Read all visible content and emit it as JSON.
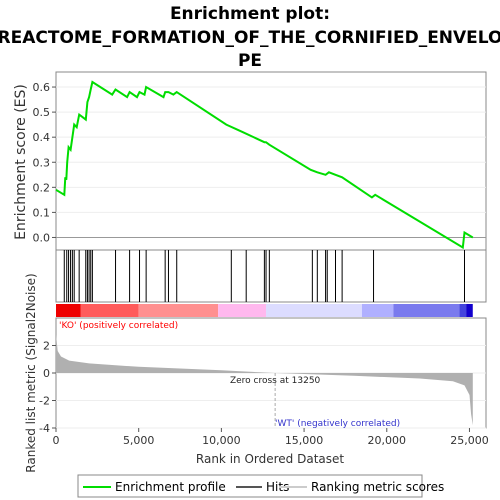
{
  "chart_data": {
    "type": "line",
    "title_lines": [
      "Enrichment plot:",
      "REACTOME_FORMATION_OF_THE_CORNIFIED_ENVELO",
      "PE"
    ],
    "es_panel": {
      "ylabel": "Enrichment score (ES)",
      "ylim": [
        -0.05,
        0.66
      ],
      "yticks": [
        0.0,
        0.1,
        0.2,
        0.3,
        0.4,
        0.5,
        0.6
      ],
      "ytick_labels": [
        "0.0",
        "0.1",
        "0.2",
        "0.3",
        "0.4",
        "0.5",
        "0.6"
      ],
      "series": [
        {
          "name": "Enrichment profile",
          "color": "#00dd00",
          "x": [
            0,
            500,
            560,
            620,
            680,
            760,
            880,
            990,
            1100,
            1250,
            1400,
            1600,
            1800,
            1900,
            2000,
            2100,
            2200,
            3400,
            3600,
            4300,
            4450,
            4900,
            5050,
            5350,
            5450,
            6500,
            6600,
            6800,
            7100,
            7300,
            10300,
            11300,
            12600,
            12700,
            12900,
            15400,
            15800,
            16300,
            16500,
            16900,
            17300,
            19100,
            19300,
            24600,
            24700,
            25200
          ],
          "y": [
            0.19,
            0.17,
            0.24,
            0.23,
            0.3,
            0.36,
            0.35,
            0.4,
            0.45,
            0.44,
            0.49,
            0.48,
            0.47,
            0.54,
            0.56,
            0.59,
            0.62,
            0.57,
            0.59,
            0.56,
            0.58,
            0.56,
            0.58,
            0.57,
            0.6,
            0.56,
            0.58,
            0.58,
            0.57,
            0.58,
            0.45,
            0.42,
            0.38,
            0.38,
            0.37,
            0.27,
            0.26,
            0.25,
            0.26,
            0.25,
            0.24,
            0.16,
            0.17,
            -0.04,
            0.02,
            0.0
          ]
        }
      ]
    },
    "hits": [
      500,
      650,
      760,
      880,
      990,
      1100,
      1400,
      1800,
      1900,
      2000,
      2100,
      2200,
      3600,
      4450,
      5050,
      5450,
      6600,
      6800,
      7300,
      10600,
      11500,
      12600,
      12700,
      12900,
      15500,
      15800,
      16300,
      16400,
      16900,
      17300,
      19200,
      24700
    ],
    "rank_panel": {
      "ylabel": "Ranked list metric (Signal2Noise)",
      "ylim": [
        -4,
        4
      ],
      "yticks": [
        -4,
        -2,
        0,
        2
      ],
      "ytick_labels": [
        "-4",
        "-2",
        "0",
        "2"
      ],
      "metric_x": [
        0,
        100,
        300,
        800,
        2000,
        5000,
        10000,
        13250,
        18000,
        22000,
        24000,
        24700,
        25000,
        25100,
        25200
      ],
      "metric_y": [
        2.8,
        1.6,
        1.2,
        0.9,
        0.7,
        0.45,
        0.2,
        0.0,
        -0.2,
        -0.4,
        -0.6,
        -0.9,
        -1.6,
        -3.0,
        -3.8
      ],
      "fill_color": "#b0b0b0",
      "zero_cross_label": "Zero cross at 13250",
      "zero_cross": 13250,
      "pos_label": "'KO' (positively correlated)",
      "neg_label": "'WT' (negatively correlated)",
      "pos_color": "#ff0000",
      "neg_color": "#3333cc"
    },
    "xlabel": "Rank in Ordered Dataset",
    "xlim": [
      0,
      26000
    ],
    "xticks": [
      0,
      5000,
      10000,
      15000,
      20000,
      25000
    ],
    "xtick_labels": [
      "0",
      "5,000",
      "10,000",
      "15,000",
      "20,000",
      "25,000"
    ],
    "heatmap_colors": [
      "#ee0000",
      "#ff5b5b",
      "#ff9090",
      "#ffb8ee",
      "#dcdcff",
      "#b0b0ff",
      "#7a7aee",
      "#4444dd",
      "#1100cc"
    ],
    "heatmap_breaks": [
      0,
      1500,
      5000,
      9800,
      12700,
      18500,
      20400,
      24400,
      24800,
      25200
    ],
    "legend": [
      {
        "label": "Enrichment profile",
        "color": "#00dd00",
        "kind": "line"
      },
      {
        "label": "Hits",
        "color": "#555555",
        "kind": "line"
      },
      {
        "label": "Ranking metric scores",
        "color": "#cccccc",
        "kind": "line"
      }
    ]
  }
}
